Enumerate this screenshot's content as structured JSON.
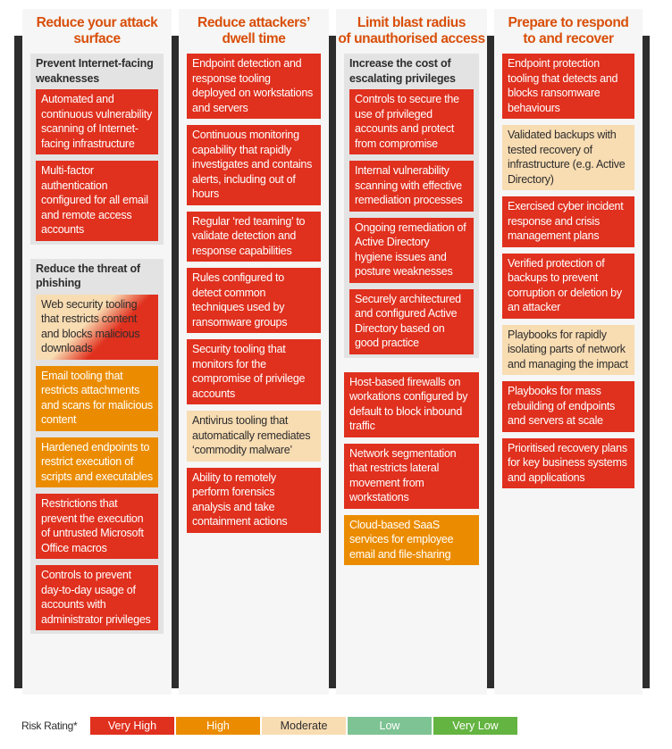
{
  "columns": [
    {
      "title": "Reduce your attack surface",
      "groups": [
        {
          "title": "Prevent Internet-facing weaknesses",
          "cards": [
            {
              "text": "Automated and continuous vulnerability scanning of Internet-facing infrastructure",
              "rating": "Very High"
            },
            {
              "text": "Multi-factor authentication configured for all email and remote access accounts",
              "rating": "Very High"
            }
          ]
        },
        {
          "title": "Reduce the threat of phishing",
          "cards": [
            {
              "text": "Web security tooling that restricts content and blocks malicious downloads",
              "rating": "Moderate to Very High"
            },
            {
              "text": "Email tooling that restricts attachments and scans for malicious content",
              "rating": "High"
            },
            {
              "text": "Hardened endpoints to restrict execution of scripts and executables",
              "rating": "High"
            },
            {
              "text": "Restrictions that prevent the execution of untrusted Microsoft Office macros",
              "rating": "Very High"
            },
            {
              "text": "Controls to prevent day-to-day usage of accounts with administrator privileges",
              "rating": "Very High"
            }
          ]
        }
      ]
    },
    {
      "title": "Reduce attackers’ dwell time",
      "cards": [
        {
          "text": "Endpoint detection and response tooling deployed on workstations and servers",
          "rating": "Very High"
        },
        {
          "text": "Continuous monitoring capability that rapidly investigates and contains alerts, including out of hours",
          "rating": "Very High"
        },
        {
          "text": "Regular ‘red teaming’ to validate detection and response capabilities",
          "rating": "Very High"
        },
        {
          "text": "Rules configured to detect common techniques used by ransomware groups",
          "rating": "Very High"
        },
        {
          "text": "Security tooling that monitors for the compromise of privilege accounts",
          "rating": "Very High"
        },
        {
          "text": "Antivirus tooling that automatically remediates ‘commodity malware’",
          "rating": "Moderate"
        },
        {
          "text": "Ability to remotely perform forensics analysis and take containment actions",
          "rating": "Very High"
        }
      ]
    },
    {
      "title": "Limit blast radius of unauthorised access",
      "groups": [
        {
          "title": "Increase the cost of escalating privileges",
          "cards": [
            {
              "text": "Controls to secure the use of privileged accounts and protect from compromise",
              "rating": "Very High"
            },
            {
              "text": "Internal vulnerability scanning with effective remediation processes",
              "rating": "Very High"
            },
            {
              "text": "Ongoing remediation of Active Directory hygiene issues and posture weaknesses",
              "rating": "Very High"
            },
            {
              "text": "Securely architectured and configured Active Directory based on good practice",
              "rating": "Very High"
            }
          ]
        }
      ],
      "cards": [
        {
          "text": "Host-based firewalls on workations configured by default to block inbound traffic",
          "rating": "Very High"
        },
        {
          "text": "Network segmentation that restricts lateral movement from workstations",
          "rating": "Very High"
        },
        {
          "text": "Cloud-based SaaS services for employee email and file-sharing",
          "rating": "High"
        }
      ]
    },
    {
      "title": "Prepare to respond to and recover",
      "cards": [
        {
          "text": "Endpoint protection tooling that detects and blocks ransomware behaviours",
          "rating": "Very High"
        },
        {
          "text": "Validated backups with tested recovery of infrastructure (e.g. Active Directory)",
          "rating": "Moderate"
        },
        {
          "text": "Exercised cyber incident response and crisis management plans",
          "rating": "Very High"
        },
        {
          "text": "Verified protection of backups to prevent corruption or deletion by an attacker",
          "rating": "Very High"
        },
        {
          "text": "Playbooks for rapidly isolating parts of network and managing the impact",
          "rating": "Moderate"
        },
        {
          "text": "Playbooks for mass rebuilding of endpoints and servers at scale",
          "rating": "Very High"
        },
        {
          "text": "Prioritised recovery plans for key business systems and applications",
          "rating": "Very High"
        }
      ]
    }
  ],
  "legend": {
    "label": "Risk Rating*",
    "items": [
      {
        "label": "Very High",
        "color": "#e0301e"
      },
      {
        "label": "High",
        "color": "#eb8c00"
      },
      {
        "label": "Moderate",
        "color": "#f8dcb2"
      },
      {
        "label": "Low",
        "color": "#7dc393"
      },
      {
        "label": "Very Low",
        "color": "#64b441"
      }
    ]
  }
}
